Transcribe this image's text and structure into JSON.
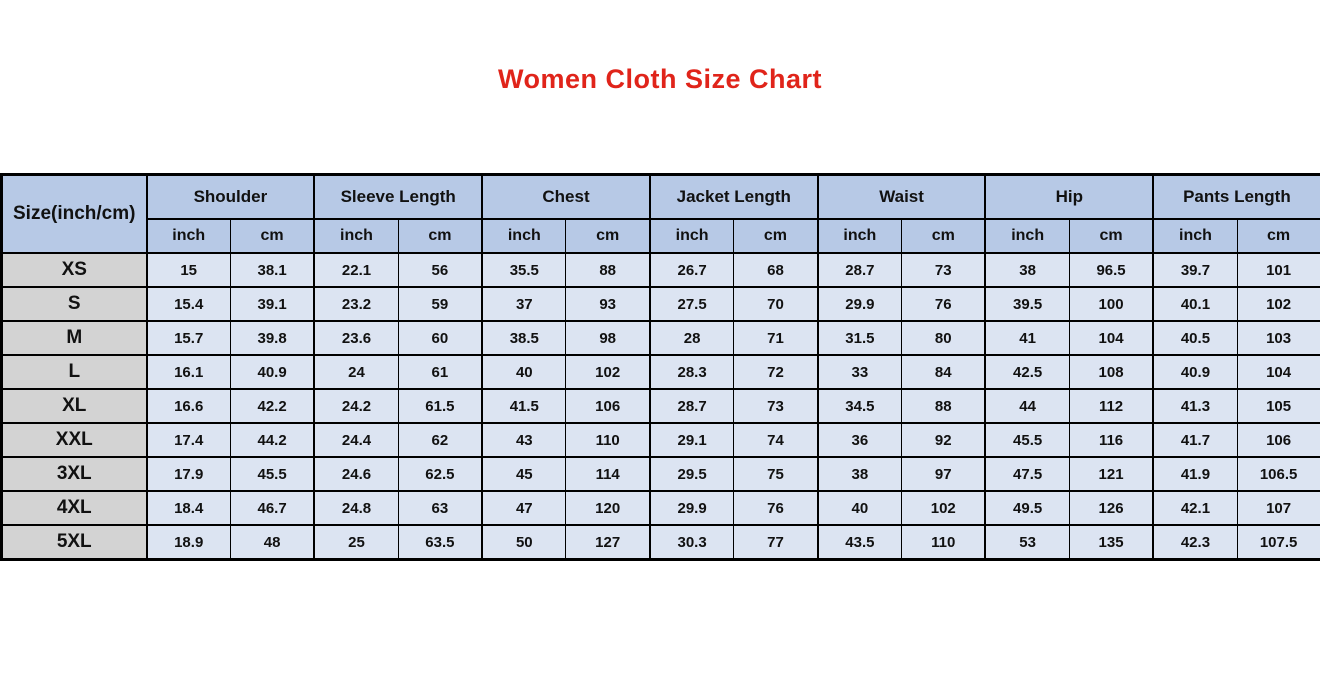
{
  "chart_data": {
    "type": "table",
    "title": "Women Cloth Size Chart",
    "size_column_header": "Size(inch/cm)",
    "column_groups": [
      "Shoulder",
      "Sleeve Length",
      "Chest",
      "Jacket Length",
      "Waist",
      "Hip",
      "Pants Length"
    ],
    "unit_subheaders": [
      "inch",
      "cm"
    ],
    "rows": [
      {
        "size": "XS",
        "values": [
          "15",
          "38.1",
          "22.1",
          "56",
          "35.5",
          "88",
          "26.7",
          "68",
          "28.7",
          "73",
          "38",
          "96.5",
          "39.7",
          "101"
        ]
      },
      {
        "size": "S",
        "values": [
          "15.4",
          "39.1",
          "23.2",
          "59",
          "37",
          "93",
          "27.5",
          "70",
          "29.9",
          "76",
          "39.5",
          "100",
          "40.1",
          "102"
        ]
      },
      {
        "size": "M",
        "values": [
          "15.7",
          "39.8",
          "23.6",
          "60",
          "38.5",
          "98",
          "28",
          "71",
          "31.5",
          "80",
          "41",
          "104",
          "40.5",
          "103"
        ]
      },
      {
        "size": "L",
        "values": [
          "16.1",
          "40.9",
          "24",
          "61",
          "40",
          "102",
          "28.3",
          "72",
          "33",
          "84",
          "42.5",
          "108",
          "40.9",
          "104"
        ]
      },
      {
        "size": "XL",
        "values": [
          "16.6",
          "42.2",
          "24.2",
          "61.5",
          "41.5",
          "106",
          "28.7",
          "73",
          "34.5",
          "88",
          "44",
          "112",
          "41.3",
          "105"
        ]
      },
      {
        "size": "XXL",
        "values": [
          "17.4",
          "44.2",
          "24.4",
          "62",
          "43",
          "110",
          "29.1",
          "74",
          "36",
          "92",
          "45.5",
          "116",
          "41.7",
          "106"
        ]
      },
      {
        "size": "3XL",
        "values": [
          "17.9",
          "45.5",
          "24.6",
          "62.5",
          "45",
          "114",
          "29.5",
          "75",
          "38",
          "97",
          "47.5",
          "121",
          "41.9",
          "106.5"
        ]
      },
      {
        "size": "4XL",
        "values": [
          "18.4",
          "46.7",
          "24.8",
          "63",
          "47",
          "120",
          "29.9",
          "76",
          "40",
          "102",
          "49.5",
          "126",
          "42.1",
          "107"
        ]
      },
      {
        "size": "5XL",
        "values": [
          "18.9",
          "48",
          "25",
          "63.5",
          "50",
          "127",
          "30.3",
          "77",
          "43.5",
          "110",
          "53",
          "135",
          "42.3",
          "107.5"
        ]
      }
    ]
  },
  "colors": {
    "title_red": "#e0241a",
    "header_blue": "#b7c9e6",
    "cell_blue": "#dce4f2",
    "size_column_gray": "#d3d3d3",
    "border_black": "#000000"
  }
}
